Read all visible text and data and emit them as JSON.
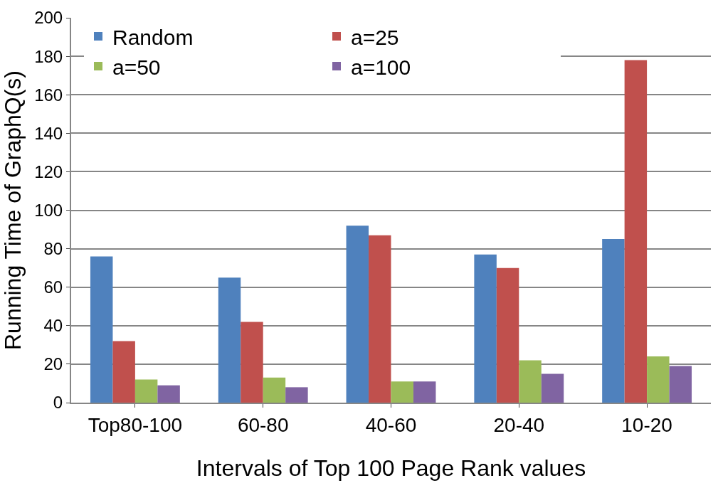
{
  "chart_data": {
    "type": "bar",
    "xlabel": "Intervals of Top 100 Page Rank values",
    "ylabel": "Running Time of GraphQ(s)",
    "categories": [
      "Top80-100",
      "60-80",
      "40-60",
      "20-40",
      "10-20"
    ],
    "series": [
      {
        "name": "Random",
        "color": "#4f81bd",
        "values": [
          76,
          65,
          92,
          77,
          85
        ]
      },
      {
        "name": "a=25",
        "color": "#c0504d",
        "values": [
          32,
          42,
          87,
          70,
          178
        ]
      },
      {
        "name": "a=50",
        "color": "#9bbb59",
        "values": [
          12,
          13,
          11,
          22,
          24
        ]
      },
      {
        "name": "a=100",
        "color": "#8064a2",
        "values": [
          9,
          8,
          11,
          15,
          19
        ]
      }
    ],
    "ylim": [
      0,
      200
    ],
    "yticks": [
      0,
      20,
      40,
      60,
      80,
      100,
      120,
      140,
      160,
      180,
      200
    ],
    "grid": "y",
    "legend": "top left"
  }
}
